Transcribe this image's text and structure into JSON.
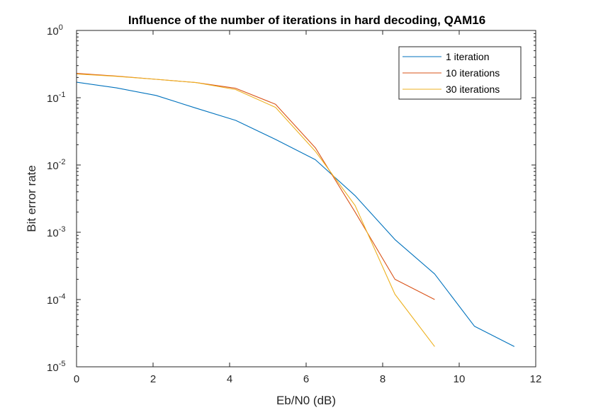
{
  "chart_data": {
    "type": "line",
    "title": "Influence of the number of iterations in hard decoding, QAM16",
    "xlabel": "Eb/N0 (dB)",
    "ylabel": "Bit error rate",
    "xlim": [
      0,
      12
    ],
    "ylim": [
      1e-05,
      1
    ],
    "yscale": "log",
    "x_ticks": [
      0,
      2,
      4,
      6,
      8,
      10,
      12
    ],
    "y_ticks": [
      {
        "value": 1e-05,
        "base": "10",
        "exp": "-5"
      },
      {
        "value": 0.0001,
        "base": "10",
        "exp": "-4"
      },
      {
        "value": 0.001,
        "base": "10",
        "exp": "-3"
      },
      {
        "value": 0.01,
        "base": "10",
        "exp": "-2"
      },
      {
        "value": 0.1,
        "base": "10",
        "exp": "-1"
      },
      {
        "value": 1,
        "base": "10",
        "exp": "0"
      }
    ],
    "grid": false,
    "legend_position": "top-right",
    "series": [
      {
        "name": "1 iteration",
        "color": "#0072BD",
        "x": [
          0,
          1.04,
          2.08,
          3.12,
          4.16,
          5.2,
          6.24,
          7.28,
          8.32,
          9.36,
          10.4,
          11.44
        ],
        "y": [
          0.17,
          0.14,
          0.108,
          0.07,
          0.046,
          0.024,
          0.012,
          0.0035,
          0.00078,
          0.00024,
          4e-05,
          2e-05
        ]
      },
      {
        "name": "10 iterations",
        "color": "#D95319",
        "x": [
          0,
          1.04,
          2.08,
          3.12,
          4.16,
          5.2,
          6.24,
          7.28,
          8.32,
          9.36
        ],
        "y": [
          0.23,
          0.21,
          0.188,
          0.168,
          0.138,
          0.08,
          0.018,
          0.002,
          0.0002,
          0.0001
        ]
      },
      {
        "name": "30 iterations",
        "color": "#EDB120",
        "x": [
          0,
          1.04,
          2.08,
          3.12,
          4.16,
          5.2,
          6.24,
          7.28,
          8.32,
          9.36
        ],
        "y": [
          0.225,
          0.208,
          0.188,
          0.168,
          0.132,
          0.072,
          0.016,
          0.0025,
          0.00012,
          2e-05
        ]
      }
    ]
  }
}
